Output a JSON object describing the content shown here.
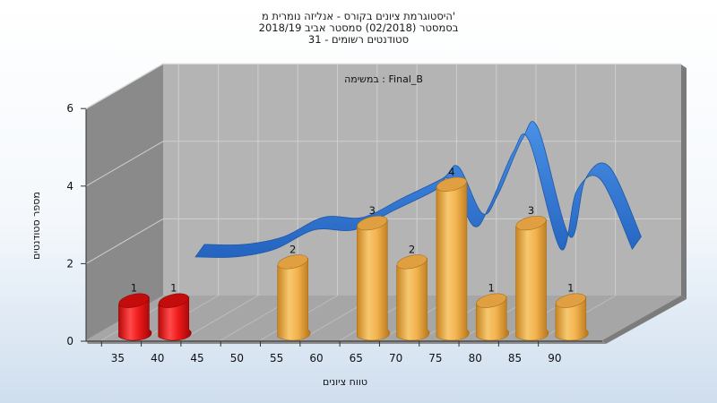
{
  "chart_data": {
    "type": "bar",
    "title_lines": [
      "היסטוגרמת ציונים בקורס - אנליזה נומרית מ'",
      "בסמסטר  (02/2018)  סמסטר אביב 2018/19",
      "סטודנטים רשומים - 31"
    ],
    "inner_title": "במשימה : Final_B",
    "xlabel": "טווח ציונים",
    "ylabel": "מספר סטודנטים",
    "categories": [
      "35",
      "40",
      "45",
      "50",
      "55",
      "60",
      "65",
      "70",
      "75",
      "80",
      "85",
      "90"
    ],
    "x_tick_labels": [
      "35",
      "40",
      "45",
      "50",
      "55",
      "60",
      "65",
      "70",
      "75",
      "80",
      "85",
      "90"
    ],
    "y_tick_labels": [
      "0",
      "2",
      "4",
      "6"
    ],
    "ylim": [
      0,
      6
    ],
    "bars": [
      {
        "x": 35,
        "value": 1,
        "label": "1",
        "color": "red"
      },
      {
        "x": 40,
        "value": 1,
        "label": "1",
        "color": "red"
      },
      {
        "x": 55,
        "value": 2,
        "label": "2",
        "color": "orange"
      },
      {
        "x": 65,
        "value": 3,
        "label": "3",
        "color": "orange"
      },
      {
        "x": 70,
        "value": 2,
        "label": "2",
        "color": "orange"
      },
      {
        "x": 75,
        "value": 4,
        "label": "4",
        "color": "orange"
      },
      {
        "x": 80,
        "value": 1,
        "label": "1",
        "color": "orange"
      },
      {
        "x": 85,
        "value": 3,
        "label": "3",
        "color": "orange"
      },
      {
        "x": 90,
        "value": 1,
        "label": "1",
        "color": "orange"
      }
    ],
    "trend_series": [
      {
        "x": 40,
        "value": 1.7
      },
      {
        "x": 45,
        "value": 1.7
      },
      {
        "x": 50,
        "value": 1.9
      },
      {
        "x": 55,
        "value": 2.4
      },
      {
        "x": 60,
        "value": 2.4
      },
      {
        "x": 65,
        "value": 2.9
      },
      {
        "x": 70,
        "value": 3.4
      },
      {
        "x": 72,
        "value": 3.7
      },
      {
        "x": 75,
        "value": 2.5
      },
      {
        "x": 77,
        "value": 3.0
      },
      {
        "x": 80,
        "value": 4.4
      },
      {
        "x": 82,
        "value": 4.7
      },
      {
        "x": 86,
        "value": 1.9
      },
      {
        "x": 88,
        "value": 3.4
      },
      {
        "x": 91,
        "value": 3.7
      },
      {
        "x": 95,
        "value": 1.9
      }
    ],
    "colors": {
      "red": "#e01212",
      "orange": "#f2b24a",
      "trend": "#2f78d0",
      "back_wall": "#b4b4b4",
      "side_wall": "#8a8a8a",
      "floor": "#a8a8a8"
    },
    "grid": true,
    "legend": "none"
  }
}
